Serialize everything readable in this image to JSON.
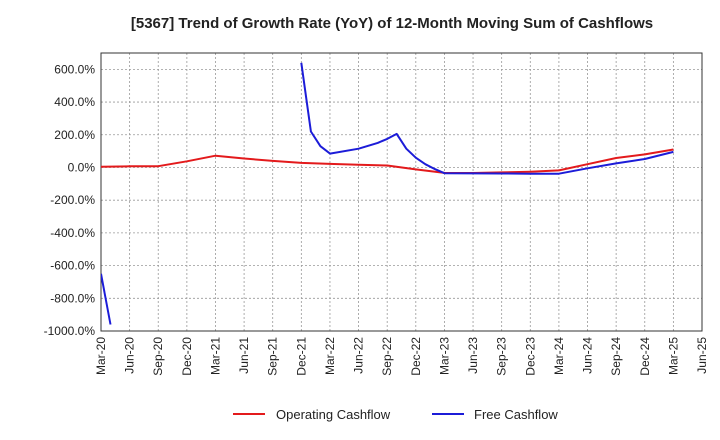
{
  "chart_data": {
    "type": "line",
    "title": "[5367]  Trend of Growth Rate (YoY) of 12-Month Moving Sum of Cashflows",
    "xlabel": "",
    "ylabel": "",
    "ylim": [
      -1000,
      700
    ],
    "yticks": [
      600,
      400,
      200,
      0,
      -200,
      -400,
      -600,
      -800,
      -1000
    ],
    "ytick_labels": [
      "600.0%",
      "400.0%",
      "200.0%",
      "0.0%",
      "-200.0%",
      "-400.0%",
      "-600.0%",
      "-800.0%",
      "-1000.0%"
    ],
    "xticks": [
      "2020-03",
      "2020-06",
      "2020-09",
      "2020-12",
      "2021-03",
      "2021-06",
      "2021-09",
      "2021-12",
      "2022-03",
      "2022-06",
      "2022-09",
      "2022-12",
      "2023-03",
      "2023-06",
      "2023-09",
      "2023-12",
      "2024-03",
      "2024-06",
      "2024-09",
      "2024-12",
      "2025-03",
      "2025-06"
    ],
    "xtick_labels": [
      "Mar-20",
      "Jun-20",
      "Sep-20",
      "Dec-20",
      "Mar-21",
      "Jun-21",
      "Sep-21",
      "Dec-21",
      "Mar-22",
      "Jun-22",
      "Sep-22",
      "Dec-22",
      "Mar-23",
      "Jun-23",
      "Sep-23",
      "Dec-23",
      "Mar-24",
      "Jun-24",
      "Sep-24",
      "Dec-24",
      "Mar-25",
      "Jun-25"
    ],
    "grid": true,
    "legend_position": "bottom-center",
    "series": [
      {
        "name": "Operating Cashflow",
        "color": "#e31a1c",
        "points": [
          [
            "2020-03",
            5
          ],
          [
            "2020-06",
            7
          ],
          [
            "2020-09",
            8
          ],
          [
            "2020-12",
            38
          ],
          [
            "2021-03",
            72
          ],
          [
            "2021-06",
            55
          ],
          [
            "2021-09",
            40
          ],
          [
            "2021-12",
            28
          ],
          [
            "2022-03",
            22
          ],
          [
            "2022-06",
            17
          ],
          [
            "2022-09",
            12
          ],
          [
            "2022-12",
            -12
          ],
          [
            "2023-03",
            -33
          ],
          [
            "2023-06",
            -34
          ],
          [
            "2023-09",
            -30
          ],
          [
            "2023-12",
            -26
          ],
          [
            "2024-03",
            -18
          ],
          [
            "2024-06",
            20
          ],
          [
            "2024-09",
            58
          ],
          [
            "2024-12",
            80
          ],
          [
            "2025-03",
            110
          ]
        ]
      },
      {
        "name": "Free Cashflow",
        "color": "#1c1cd8",
        "segments": [
          [
            [
              "2020-03",
              -650
            ],
            [
              "2020-04",
              -960
            ]
          ],
          [
            [
              "2021-12",
              640
            ],
            [
              "2022-01",
              220
            ],
            [
              "2022-02",
              130
            ],
            [
              "2022-03",
              85
            ],
            [
              "2022-06",
              115
            ],
            [
              "2022-08",
              150
            ],
            [
              "2022-09",
              175
            ],
            [
              "2022-10",
              205
            ],
            [
              "2022-11",
              115
            ],
            [
              "2022-12",
              60
            ],
            [
              "2023-01",
              20
            ],
            [
              "2023-02",
              -10
            ],
            [
              "2023-03",
              -35
            ],
            [
              "2023-06",
              -36
            ],
            [
              "2023-09",
              -37
            ],
            [
              "2023-12",
              -38
            ],
            [
              "2024-03",
              -38
            ],
            [
              "2024-06",
              -5
            ],
            [
              "2024-09",
              25
            ],
            [
              "2024-12",
              52
            ],
            [
              "2025-03",
              95
            ]
          ]
        ]
      }
    ]
  }
}
